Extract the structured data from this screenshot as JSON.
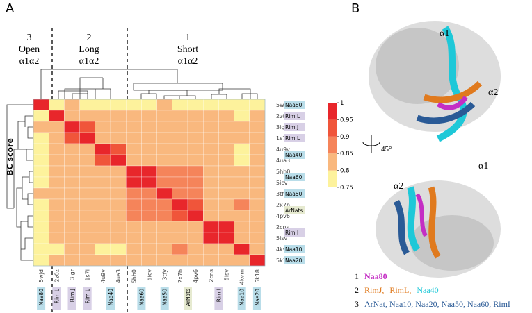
{
  "chart_data": {
    "type": "heatmap",
    "panel_label": "A",
    "ylabel": "BC score",
    "groups": [
      {
        "number": "3",
        "name": "Open",
        "helices": "α1α2"
      },
      {
        "number": "2",
        "name": "Long",
        "helices": "α1α2"
      },
      {
        "number": "1",
        "name": "Short",
        "helices": "α1α2"
      }
    ],
    "labels": [
      "5wjd",
      "2z0z",
      "3igr",
      "1s7l",
      "4u9v",
      "4ua3",
      "5hh0",
      "5icv",
      "3tfy",
      "2x7b",
      "4pv6",
      "2cns",
      "5isv",
      "4kvm",
      "5k18"
    ],
    "tags": [
      {
        "text": "Naa80",
        "rows": [
          0,
          0
        ],
        "color": "#b9dde9"
      },
      {
        "text": "Rim L",
        "rows": [
          1,
          1
        ],
        "color": "#d8d0e6"
      },
      {
        "text": "Rim J",
        "rows": [
          2,
          2
        ],
        "color": "#d8d0e6"
      },
      {
        "text": "Rim L",
        "rows": [
          3,
          3
        ],
        "color": "#d8d0e6"
      },
      {
        "text": "Naa40",
        "rows": [
          4,
          5
        ],
        "color": "#b9dde9"
      },
      {
        "text": "Naa60",
        "rows": [
          6,
          7
        ],
        "color": "#b9dde9"
      },
      {
        "text": "Naa50",
        "rows": [
          8,
          8
        ],
        "color": "#b9dde9"
      },
      {
        "text": "ArNats",
        "rows": [
          9,
          10
        ],
        "color": "#e6ead0"
      },
      {
        "text": "Rim I",
        "rows": [
          11,
          12
        ],
        "color": "#d8d0e6"
      },
      {
        "text": "Naa10",
        "rows": [
          13,
          13
        ],
        "color": "#b9dde9"
      },
      {
        "text": "Naa20",
        "rows": [
          14,
          14
        ],
        "color": "#b9dde9"
      }
    ],
    "values": [
      [
        1,
        0.77,
        0.82,
        0.77,
        0.77,
        0.77,
        0.77,
        0.77,
        0.82,
        0.77,
        0.77,
        0.77,
        0.77,
        0.77,
        0.77
      ],
      [
        0.77,
        1,
        0.82,
        0.82,
        0.82,
        0.82,
        0.82,
        0.82,
        0.82,
        0.82,
        0.82,
        0.82,
        0.82,
        0.77,
        0.82
      ],
      [
        0.82,
        0.82,
        1,
        0.9,
        0.82,
        0.82,
        0.82,
        0.82,
        0.82,
        0.82,
        0.82,
        0.82,
        0.82,
        0.82,
        0.82
      ],
      [
        0.77,
        0.82,
        0.9,
        1,
        0.82,
        0.82,
        0.82,
        0.82,
        0.82,
        0.82,
        0.82,
        0.82,
        0.82,
        0.82,
        0.82
      ],
      [
        0.77,
        0.82,
        0.82,
        0.82,
        1,
        0.9,
        0.82,
        0.82,
        0.82,
        0.82,
        0.82,
        0.82,
        0.82,
        0.77,
        0.82
      ],
      [
        0.77,
        0.82,
        0.82,
        0.82,
        0.9,
        1,
        0.82,
        0.82,
        0.82,
        0.82,
        0.82,
        0.82,
        0.82,
        0.77,
        0.82
      ],
      [
        0.77,
        0.82,
        0.82,
        0.82,
        0.82,
        0.82,
        1,
        0.97,
        0.87,
        0.87,
        0.87,
        0.82,
        0.82,
        0.82,
        0.82
      ],
      [
        0.77,
        0.82,
        0.82,
        0.82,
        0.82,
        0.82,
        0.97,
        1,
        0.87,
        0.87,
        0.87,
        0.82,
        0.82,
        0.82,
        0.82
      ],
      [
        0.82,
        0.82,
        0.82,
        0.82,
        0.82,
        0.82,
        0.87,
        0.87,
        1,
        0.88,
        0.87,
        0.82,
        0.82,
        0.82,
        0.82
      ],
      [
        0.77,
        0.82,
        0.82,
        0.82,
        0.82,
        0.82,
        0.87,
        0.87,
        0.88,
        1,
        0.93,
        0.82,
        0.82,
        0.87,
        0.82
      ],
      [
        0.77,
        0.82,
        0.82,
        0.82,
        0.82,
        0.82,
        0.87,
        0.87,
        0.87,
        0.93,
        1,
        0.82,
        0.82,
        0.82,
        0.82
      ],
      [
        0.77,
        0.82,
        0.82,
        0.82,
        0.82,
        0.82,
        0.82,
        0.82,
        0.82,
        0.82,
        0.82,
        1,
        0.97,
        0.82,
        0.82
      ],
      [
        0.77,
        0.82,
        0.82,
        0.82,
        0.82,
        0.82,
        0.82,
        0.82,
        0.82,
        0.82,
        0.82,
        0.97,
        1,
        0.82,
        0.82
      ],
      [
        0.77,
        0.77,
        0.82,
        0.82,
        0.77,
        0.77,
        0.82,
        0.82,
        0.82,
        0.87,
        0.82,
        0.82,
        0.82,
        1,
        0.82
      ],
      [
        0.77,
        0.82,
        0.82,
        0.82,
        0.82,
        0.82,
        0.82,
        0.82,
        0.82,
        0.82,
        0.82,
        0.82,
        0.82,
        0.82,
        1
      ]
    ],
    "colorbar": {
      "lim": [
        0.75,
        1
      ],
      "ticks": [
        1,
        0.95,
        0.9,
        0.85,
        0.8,
        0.75
      ],
      "colors": [
        "#fdf29c",
        "#f9b87e",
        "#f5845a",
        "#f0553a",
        "#e8262b"
      ]
    }
  },
  "panel_b": {
    "label": "B",
    "annotations": [
      "α1",
      "α2",
      "45°",
      "α1",
      "α2"
    ],
    "legend": [
      {
        "number": "1",
        "items": [
          {
            "text": "Naa80",
            "color": "#c42ec4"
          }
        ]
      },
      {
        "number": "2",
        "items": [
          {
            "text": "RimJ,",
            "color": "#e07a1e"
          },
          {
            "text": "RimL,",
            "color": "#e07a1e"
          },
          {
            "text": "Naa40",
            "color": "#1ec8d8"
          }
        ]
      },
      {
        "number": "3",
        "items": [
          {
            "text": "ArNat, Naa10, Naa20, Naa50, Naa60, RimI",
            "color": "#2a5a96"
          }
        ]
      }
    ]
  }
}
